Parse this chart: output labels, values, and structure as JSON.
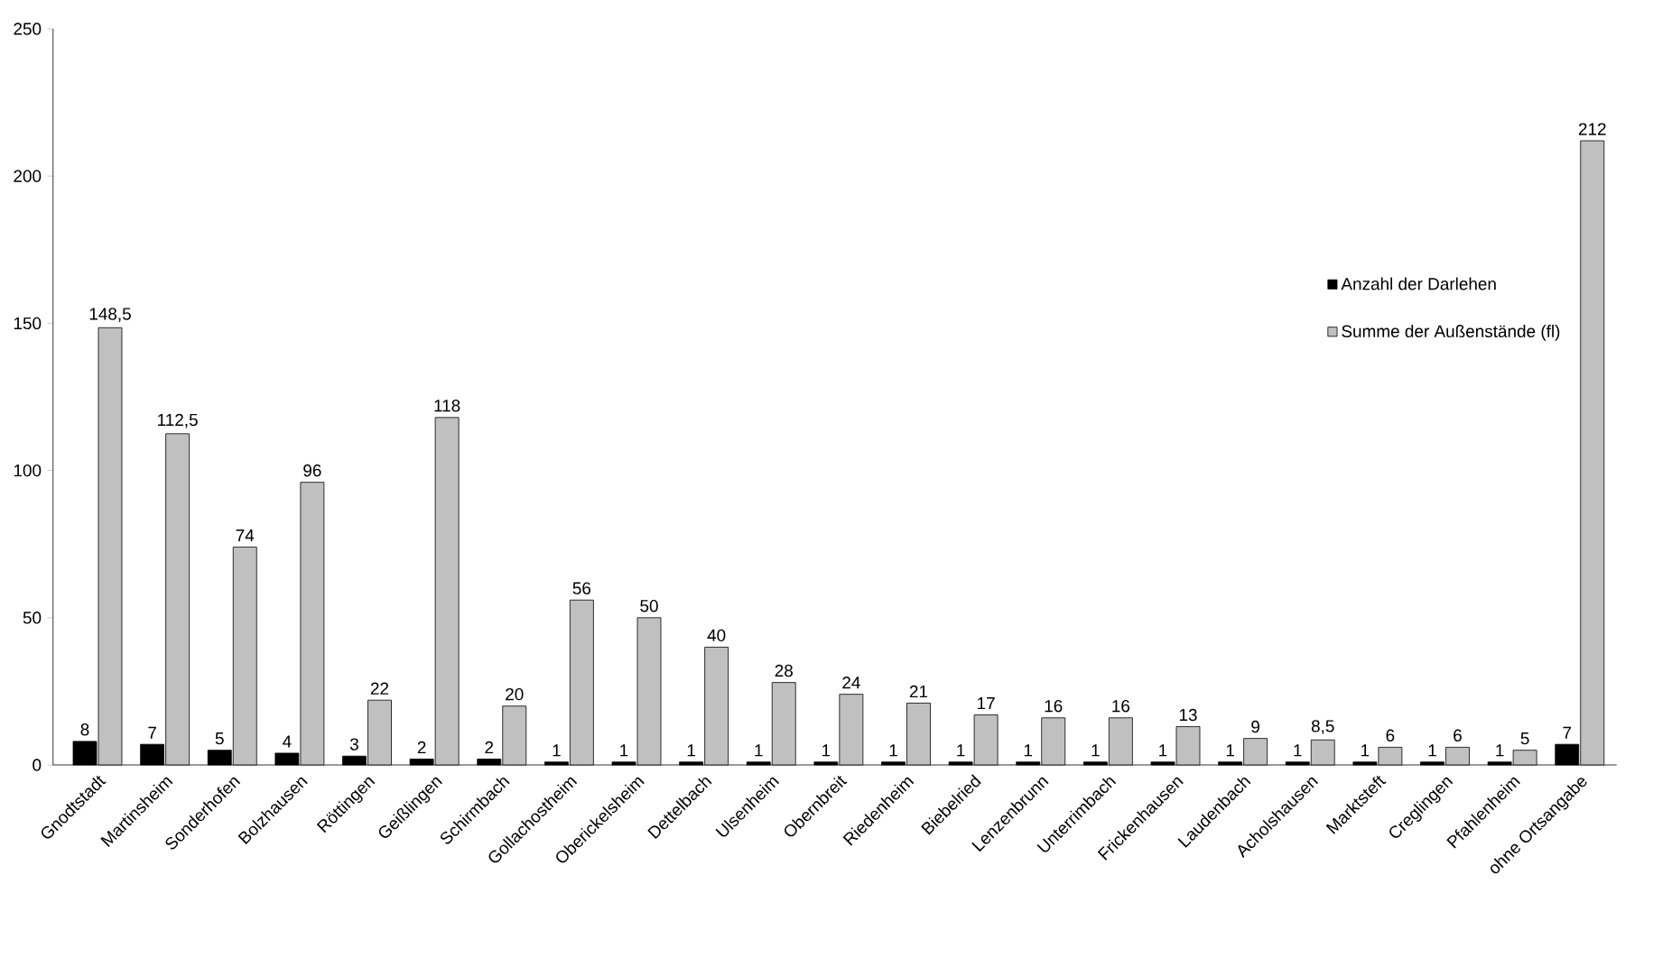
{
  "chart_data": {
    "type": "bar",
    "categories": [
      "Gnodtstadt",
      "Martinsheim",
      "Sonderhofen",
      "Bolzhausen",
      "Röttingen",
      "Geißlingen",
      "Schirmbach",
      "Gollachostheim",
      "Oberickelsheim",
      "Dettelbach",
      "Ulsenheim",
      "Obernbreit",
      "Riedenheim",
      "Biebelried",
      "Lenzenbrunn",
      "Unterrimbach",
      "Frickenhausen",
      "Laudenbach",
      "Acholshausen",
      "Marktsteft",
      "Creglingen",
      "Pfahlenheim",
      "ohne Ortsangabe"
    ],
    "series": [
      {
        "name": "Anzahl der Darlehen",
        "color": "#000000",
        "values": [
          8,
          7,
          5,
          4,
          3,
          2,
          2,
          1,
          1,
          1,
          1,
          1,
          1,
          1,
          1,
          1,
          1,
          1,
          1,
          1,
          1,
          1,
          7
        ],
        "value_labels": [
          "8",
          "7",
          "5",
          "4",
          "3",
          "2",
          "2",
          "1",
          "1",
          "1",
          "1",
          "1",
          "1",
          "1",
          "1",
          "1",
          "1",
          "1",
          "1",
          "1",
          "1",
          "1",
          "7"
        ]
      },
      {
        "name": "Summe der Außenstände (fl)",
        "color": "#c0c0c0",
        "values": [
          148.5,
          112.5,
          74,
          96,
          22,
          118,
          20,
          56,
          50,
          40,
          28,
          24,
          21,
          17,
          16,
          16,
          13,
          9,
          8.5,
          6,
          6,
          5,
          212
        ],
        "value_labels": [
          "148,5",
          "112,5",
          "74",
          "96",
          "22",
          "118",
          "20",
          "56",
          "50",
          "40",
          "28",
          "24",
          "21",
          "17",
          "16",
          "16",
          "13",
          "9",
          "8,5",
          "6",
          "6",
          "5",
          "212"
        ]
      }
    ],
    "ylim": [
      0,
      250
    ],
    "yticks": [
      0,
      50,
      100,
      150,
      200,
      250
    ],
    "legend": "right"
  }
}
